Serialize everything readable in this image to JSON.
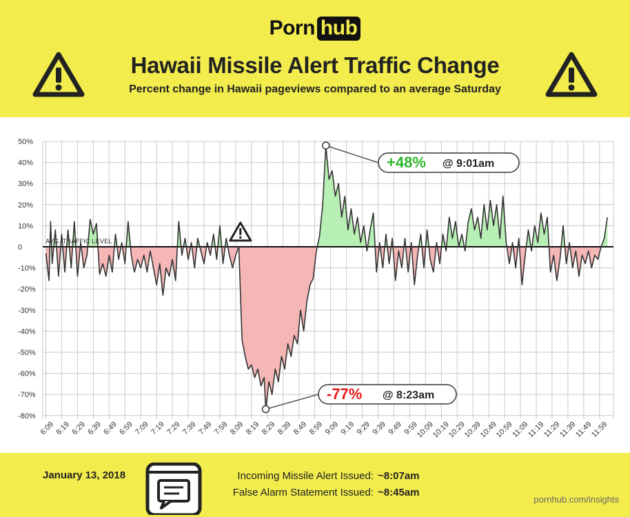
{
  "brand": {
    "part1": "Porn",
    "part2": "hub"
  },
  "header": {
    "title": "Hawaii Missile Alert Traffic Change",
    "subtitle": "Percent change in Hawaii pageviews compared to an average Saturday"
  },
  "chart_data": {
    "type": "area",
    "baseline_label": "AVG. TRAFFIC LEVEL",
    "ylim": [
      -85,
      50
    ],
    "y_ticks": [
      50,
      40,
      30,
      20,
      10,
      0,
      -10,
      -20,
      -30,
      -40,
      -50,
      -60,
      -70,
      -80
    ],
    "y_tick_labels": [
      "50%",
      "40%",
      "30%",
      "20%",
      "10%",
      "0",
      "-10%",
      "-20%",
      "-30%",
      "-40%",
      "-50%",
      "-60%",
      "-70%",
      "-80%"
    ],
    "x_tick_labels": [
      "6:09",
      "6:19",
      "6:29",
      "6:39",
      "6:49",
      "6:59",
      "7:09",
      "7:19",
      "7:29",
      "7:39",
      "7:49",
      "7:59",
      "8:09",
      "8:19",
      "8:29",
      "8:39",
      "8:49",
      "8:59",
      "9:09",
      "9:19",
      "9:29",
      "9:39",
      "9:49",
      "9:59",
      "10:09",
      "10:19",
      "10:29",
      "10:39",
      "10:49",
      "10:59",
      "11:09",
      "11:19",
      "11:29",
      "11:39",
      "11:49",
      "11:59"
    ],
    "grid": true,
    "colors": {
      "positive_fill": "#b8efb4",
      "negative_fill": "#f5b6b6",
      "line": "#333333",
      "peak": "#2db52d",
      "low": "#e61c1c"
    },
    "points": [
      {
        "t": "6:04",
        "v": -3
      },
      {
        "t": "6:06",
        "v": -16
      },
      {
        "t": "6:07",
        "v": 12
      },
      {
        "t": "6:08",
        "v": -8
      },
      {
        "t": "6:10",
        "v": 8
      },
      {
        "t": "6:12",
        "v": -14
      },
      {
        "t": "6:14",
        "v": 6
      },
      {
        "t": "6:16",
        "v": -12
      },
      {
        "t": "6:18",
        "v": 8
      },
      {
        "t": "6:20",
        "v": -10
      },
      {
        "t": "6:22",
        "v": 12
      },
      {
        "t": "6:24",
        "v": -14
      },
      {
        "t": "6:26",
        "v": 2
      },
      {
        "t": "6:28",
        "v": -10
      },
      {
        "t": "6:30",
        "v": -4
      },
      {
        "t": "6:32",
        "v": 13
      },
      {
        "t": "6:34",
        "v": 6
      },
      {
        "t": "6:36",
        "v": 11
      },
      {
        "t": "6:38",
        "v": -13
      },
      {
        "t": "6:40",
        "v": -8
      },
      {
        "t": "6:42",
        "v": -14
      },
      {
        "t": "6:44",
        "v": -4
      },
      {
        "t": "6:46",
        "v": -12
      },
      {
        "t": "6:48",
        "v": 6
      },
      {
        "t": "6:50",
        "v": -6
      },
      {
        "t": "6:52",
        "v": 2
      },
      {
        "t": "6:54",
        "v": -8
      },
      {
        "t": "6:56",
        "v": 12
      },
      {
        "t": "6:58",
        "v": -4
      },
      {
        "t": "7:00",
        "v": -12
      },
      {
        "t": "7:02",
        "v": -6
      },
      {
        "t": "7:04",
        "v": -10
      },
      {
        "t": "7:06",
        "v": -4
      },
      {
        "t": "7:08",
        "v": -12
      },
      {
        "t": "7:10",
        "v": -2
      },
      {
        "t": "7:12",
        "v": -10
      },
      {
        "t": "7:14",
        "v": -18
      },
      {
        "t": "7:16",
        "v": -8
      },
      {
        "t": "7:18",
        "v": -23
      },
      {
        "t": "7:20",
        "v": -10
      },
      {
        "t": "7:22",
        "v": -14
      },
      {
        "t": "7:24",
        "v": -6
      },
      {
        "t": "7:26",
        "v": -16
      },
      {
        "t": "7:28",
        "v": 12
      },
      {
        "t": "7:30",
        "v": -4
      },
      {
        "t": "7:32",
        "v": 4
      },
      {
        "t": "7:34",
        "v": -6
      },
      {
        "t": "7:36",
        "v": 2
      },
      {
        "t": "7:38",
        "v": -10
      },
      {
        "t": "7:40",
        "v": 4
      },
      {
        "t": "7:42",
        "v": -2
      },
      {
        "t": "7:44",
        "v": -8
      },
      {
        "t": "7:46",
        "v": 2
      },
      {
        "t": "7:48",
        "v": -4
      },
      {
        "t": "7:50",
        "v": 6
      },
      {
        "t": "7:52",
        "v": -6
      },
      {
        "t": "7:54",
        "v": 10
      },
      {
        "t": "7:56",
        "v": -8
      },
      {
        "t": "7:58",
        "v": 4
      },
      {
        "t": "8:00",
        "v": -4
      },
      {
        "t": "8:02",
        "v": -10
      },
      {
        "t": "8:04",
        "v": -4
      },
      {
        "t": "8:06",
        "v": 0
      },
      {
        "t": "8:08",
        "v": -44
      },
      {
        "t": "8:10",
        "v": -52
      },
      {
        "t": "8:12",
        "v": -58
      },
      {
        "t": "8:14",
        "v": -56
      },
      {
        "t": "8:16",
        "v": -62
      },
      {
        "t": "8:18",
        "v": -58
      },
      {
        "t": "8:20",
        "v": -66
      },
      {
        "t": "8:22",
        "v": -62
      },
      {
        "t": "8:23",
        "v": -77
      },
      {
        "t": "8:25",
        "v": -64
      },
      {
        "t": "8:27",
        "v": -70
      },
      {
        "t": "8:29",
        "v": -58
      },
      {
        "t": "8:31",
        "v": -64
      },
      {
        "t": "8:33",
        "v": -52
      },
      {
        "t": "8:35",
        "v": -58
      },
      {
        "t": "8:37",
        "v": -46
      },
      {
        "t": "8:39",
        "v": -52
      },
      {
        "t": "8:41",
        "v": -42
      },
      {
        "t": "8:43",
        "v": -46
      },
      {
        "t": "8:45",
        "v": -30
      },
      {
        "t": "8:47",
        "v": -40
      },
      {
        "t": "8:49",
        "v": -26
      },
      {
        "t": "8:51",
        "v": -18
      },
      {
        "t": "8:53",
        "v": -15
      },
      {
        "t": "8:55",
        "v": -2
      },
      {
        "t": "8:57",
        "v": 5
      },
      {
        "t": "8:59",
        "v": 20
      },
      {
        "t": "9:01",
        "v": 48
      },
      {
        "t": "9:03",
        "v": 32
      },
      {
        "t": "9:05",
        "v": 36
      },
      {
        "t": "9:07",
        "v": 24
      },
      {
        "t": "9:09",
        "v": 30
      },
      {
        "t": "9:11",
        "v": 14
      },
      {
        "t": "9:13",
        "v": 24
      },
      {
        "t": "9:15",
        "v": 8
      },
      {
        "t": "9:17",
        "v": 18
      },
      {
        "t": "9:19",
        "v": 6
      },
      {
        "t": "9:21",
        "v": 14
      },
      {
        "t": "9:23",
        "v": 2
      },
      {
        "t": "9:25",
        "v": 10
      },
      {
        "t": "9:27",
        "v": -2
      },
      {
        "t": "9:29",
        "v": 8
      },
      {
        "t": "9:31",
        "v": 16
      },
      {
        "t": "9:33",
        "v": -12
      },
      {
        "t": "9:35",
        "v": 2
      },
      {
        "t": "9:37",
        "v": -10
      },
      {
        "t": "9:39",
        "v": 6
      },
      {
        "t": "9:41",
        "v": -8
      },
      {
        "t": "9:43",
        "v": 4
      },
      {
        "t": "9:45",
        "v": -16
      },
      {
        "t": "9:47",
        "v": -2
      },
      {
        "t": "9:49",
        "v": -10
      },
      {
        "t": "9:51",
        "v": 4
      },
      {
        "t": "9:53",
        "v": -12
      },
      {
        "t": "9:55",
        "v": 2
      },
      {
        "t": "9:57",
        "v": -18
      },
      {
        "t": "9:59",
        "v": -4
      },
      {
        "t": "10:01",
        "v": 6
      },
      {
        "t": "10:03",
        "v": -10
      },
      {
        "t": "10:05",
        "v": 8
      },
      {
        "t": "10:07",
        "v": -6
      },
      {
        "t": "10:09",
        "v": -12
      },
      {
        "t": "10:11",
        "v": 2
      },
      {
        "t": "10:13",
        "v": -8
      },
      {
        "t": "10:15",
        "v": 6
      },
      {
        "t": "10:17",
        "v": -2
      },
      {
        "t": "10:19",
        "v": 14
      },
      {
        "t": "10:21",
        "v": 4
      },
      {
        "t": "10:23",
        "v": 12
      },
      {
        "t": "10:25",
        "v": 0
      },
      {
        "t": "10:27",
        "v": 6
      },
      {
        "t": "10:29",
        "v": -2
      },
      {
        "t": "10:31",
        "v": 12
      },
      {
        "t": "10:33",
        "v": 18
      },
      {
        "t": "10:35",
        "v": 8
      },
      {
        "t": "10:37",
        "v": 14
      },
      {
        "t": "10:39",
        "v": 4
      },
      {
        "t": "10:41",
        "v": 20
      },
      {
        "t": "10:43",
        "v": 8
      },
      {
        "t": "10:45",
        "v": 22
      },
      {
        "t": "10:47",
        "v": 10
      },
      {
        "t": "10:49",
        "v": 20
      },
      {
        "t": "10:51",
        "v": 4
      },
      {
        "t": "10:53",
        "v": 24
      },
      {
        "t": "10:55",
        "v": 2
      },
      {
        "t": "10:57",
        "v": -8
      },
      {
        "t": "10:59",
        "v": 2
      },
      {
        "t": "11:01",
        "v": -10
      },
      {
        "t": "11:03",
        "v": 4
      },
      {
        "t": "11:05",
        "v": -18
      },
      {
        "t": "11:07",
        "v": -4
      },
      {
        "t": "11:09",
        "v": 8
      },
      {
        "t": "11:11",
        "v": -2
      },
      {
        "t": "11:13",
        "v": 10
      },
      {
        "t": "11:15",
        "v": 2
      },
      {
        "t": "11:17",
        "v": 16
      },
      {
        "t": "11:19",
        "v": 6
      },
      {
        "t": "11:21",
        "v": 14
      },
      {
        "t": "11:23",
        "v": -12
      },
      {
        "t": "11:25",
        "v": -4
      },
      {
        "t": "11:27",
        "v": -16
      },
      {
        "t": "11:29",
        "v": -6
      },
      {
        "t": "11:31",
        "v": 10
      },
      {
        "t": "11:33",
        "v": -8
      },
      {
        "t": "11:35",
        "v": 2
      },
      {
        "t": "11:37",
        "v": -10
      },
      {
        "t": "11:39",
        "v": -2
      },
      {
        "t": "11:41",
        "v": -14
      },
      {
        "t": "11:43",
        "v": -4
      },
      {
        "t": "11:45",
        "v": -8
      },
      {
        "t": "11:47",
        "v": -2
      },
      {
        "t": "11:49",
        "v": -10
      },
      {
        "t": "11:51",
        "v": -4
      },
      {
        "t": "11:53",
        "v": -6
      },
      {
        "t": "11:55",
        "v": 0
      },
      {
        "t": "11:57",
        "v": 4
      },
      {
        "t": "11:59",
        "v": 14
      }
    ],
    "annotations": {
      "peak": {
        "value": "+48%",
        "time": "@ 9:01am",
        "t": "9:01",
        "v": 48
      },
      "low": {
        "value": "-77%",
        "time": "@ 8:23am",
        "t": "8:23",
        "v": -77
      },
      "alert_marker": {
        "t": "8:07",
        "icon": "warning-triangle-icon"
      }
    }
  },
  "footer": {
    "date": "January 13, 2018",
    "events": [
      {
        "label": "Incoming Missile Alert Issued:",
        "time": "~8:07am"
      },
      {
        "label": "False Alarm Statement Issued:",
        "time": "~8:45am"
      }
    ],
    "url": "pornhub.com/insights"
  },
  "icons": {
    "header_left": "warning-triangle-icon",
    "header_right": "warning-triangle-icon",
    "footer": "smartphone-message-icon"
  }
}
